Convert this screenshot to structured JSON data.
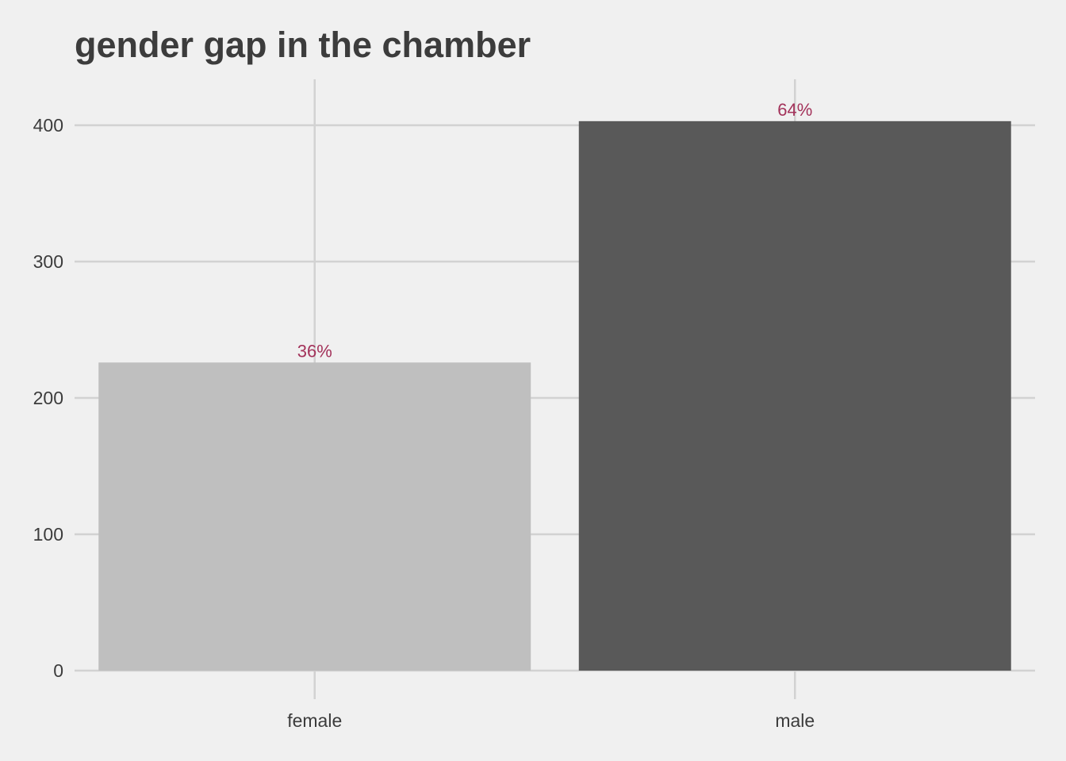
{
  "chart_data": {
    "type": "bar",
    "title": "gender gap in the chamber",
    "xlabel": "",
    "ylabel": "",
    "categories": [
      "female",
      "male"
    ],
    "values": [
      226,
      403
    ],
    "data_labels": [
      "36%",
      "64%"
    ],
    "bar_colors": [
      "#bfbfbf",
      "#595959"
    ],
    "label_color": "#a3325a",
    "ylim": [
      0,
      435
    ],
    "yticks": [
      0,
      100,
      200,
      300,
      400
    ],
    "ytick_labels": [
      "0",
      "100",
      "200",
      "300",
      "400"
    ],
    "grid": true,
    "legend": "none",
    "background_color": "#f0f0f0",
    "grid_color": "#d2d2d2",
    "text_color": "#3c3c3c"
  }
}
